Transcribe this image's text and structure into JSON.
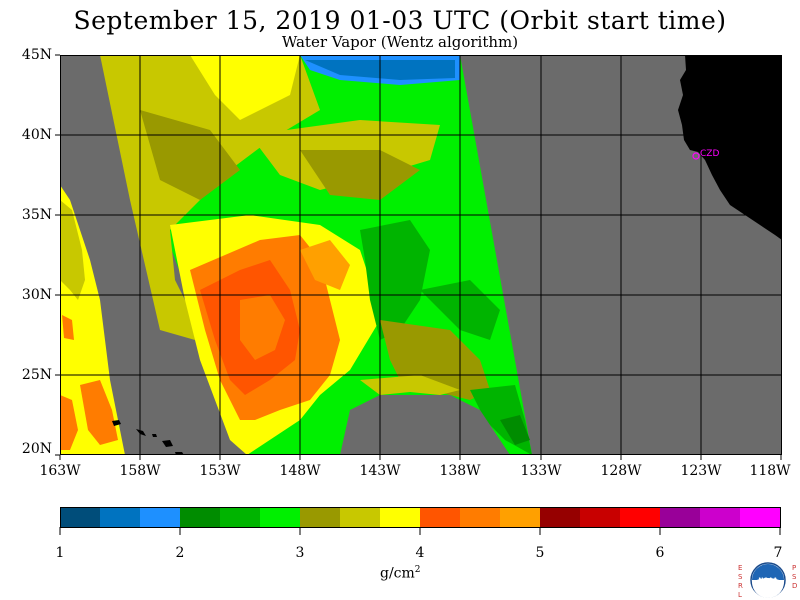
{
  "title": "September 15, 2019  01-03 UTC  (Orbit start time)",
  "subtitle": "Water Vapor (Wentz algorithm)",
  "map": {
    "lat_labels": [
      "45N",
      "40N",
      "35N",
      "30N",
      "25N",
      "20N"
    ],
    "lon_labels": [
      "163W",
      "158W",
      "153W",
      "148W",
      "143W",
      "138W",
      "133W",
      "128W",
      "123W",
      "118W"
    ],
    "lat_range": [
      20,
      45
    ],
    "lon_range": [
      -163,
      -118
    ],
    "station_label": "CZD",
    "colors": {
      "no_data": "#6b6b6b",
      "land": "#000000",
      "grid": "#000000",
      "station": "#ff00ff"
    }
  },
  "colorbar": {
    "tick_labels": [
      "1",
      "2",
      "3",
      "4",
      "5",
      "6",
      "7"
    ],
    "unit": "g/cm",
    "unit_exp": "2",
    "colors": [
      "#004d7a",
      "#0073c0",
      "#1e90ff",
      "#008c00",
      "#00b400",
      "#00f000",
      "#999900",
      "#c8c800",
      "#ffff00",
      "#ff5500",
      "#ff7c00",
      "#ffa000",
      "#960000",
      "#c80000",
      "#ff0000",
      "#990099",
      "#cc00cc",
      "#ff00ff"
    ]
  },
  "logo": {
    "left_letters": "ESRL",
    "right_letters": "PSD",
    "center": "NOAA"
  }
}
